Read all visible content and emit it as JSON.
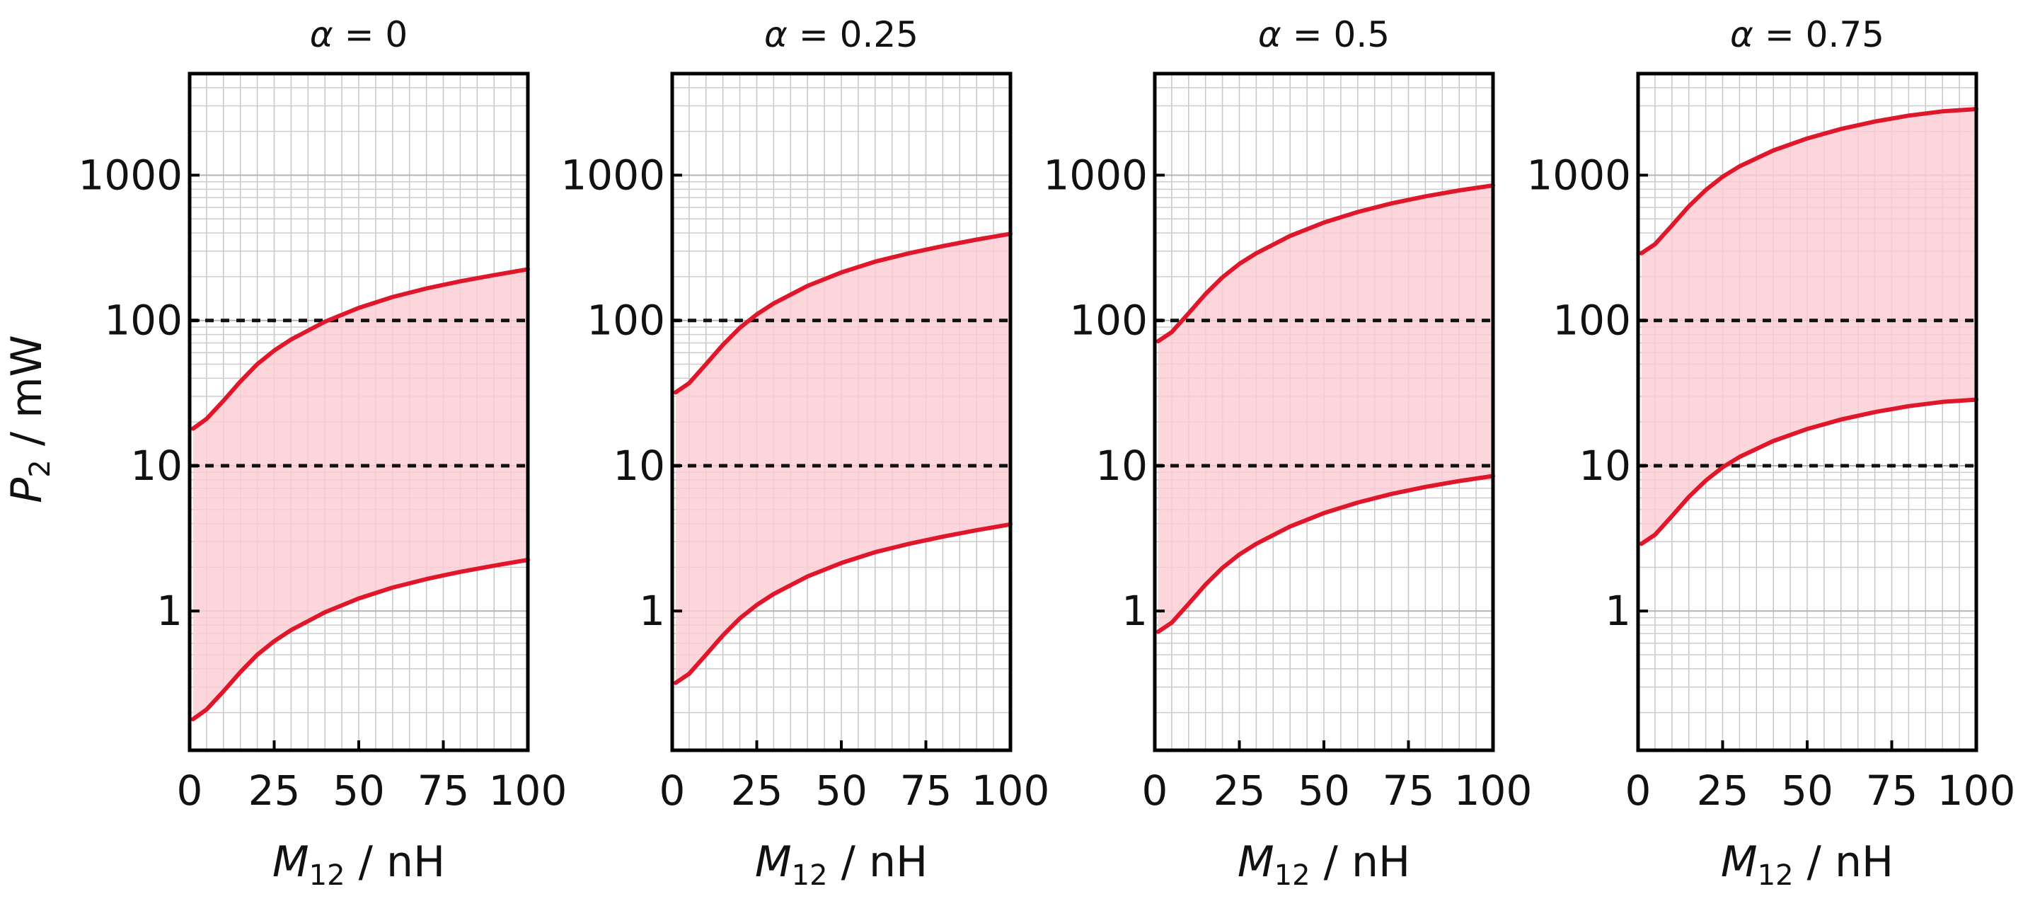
{
  "figure_ylabel": {
    "var": "P",
    "sub": "2",
    "unit": " / mW"
  },
  "chart_data": [
    {
      "type": "area",
      "title": {
        "var": "α",
        "rest": " = 0"
      },
      "xlabel": {
        "var": "M",
        "sub": "12",
        "unit": " / nH"
      },
      "xlim": [
        0,
        100
      ],
      "ylim": [
        0.11,
        5000
      ],
      "yscale": "log",
      "xticks": [
        0,
        25,
        50,
        75,
        100
      ],
      "yticks": [
        1,
        10,
        100,
        1000
      ],
      "grid": true,
      "reference_lines_y": [
        10,
        100
      ],
      "series": [
        {
          "name": "upper",
          "x": [
            1,
            5,
            10,
            15,
            20,
            25,
            30,
            40,
            50,
            60,
            70,
            80,
            90,
            100
          ],
          "y": [
            18,
            21,
            28,
            38,
            50,
            62,
            74,
            98,
            122,
            145,
            166,
            186,
            205,
            225
          ]
        },
        {
          "name": "lower",
          "x": [
            1,
            5,
            10,
            15,
            20,
            25,
            30,
            40,
            50,
            60,
            70,
            80,
            90,
            100
          ],
          "y": [
            0.18,
            0.21,
            0.28,
            0.38,
            0.5,
            0.62,
            0.74,
            0.98,
            1.22,
            1.45,
            1.66,
            1.86,
            2.05,
            2.25
          ]
        }
      ]
    },
    {
      "type": "area",
      "title": {
        "var": "α",
        "rest": " = 0.25"
      },
      "xlabel": {
        "var": "M",
        "sub": "12",
        "unit": " / nH"
      },
      "xlim": [
        0,
        100
      ],
      "ylim": [
        0.11,
        5000
      ],
      "yscale": "log",
      "xticks": [
        0,
        25,
        50,
        75,
        100
      ],
      "yticks": [
        1,
        10,
        100,
        1000
      ],
      "grid": true,
      "reference_lines_y": [
        10,
        100
      ],
      "series": [
        {
          "name": "upper",
          "x": [
            1,
            5,
            10,
            15,
            20,
            25,
            30,
            40,
            50,
            60,
            70,
            80,
            90,
            100
          ],
          "y": [
            32,
            37,
            50,
            68,
            89,
            110,
            131,
            173,
            214,
            254,
            290,
            325,
            360,
            395
          ]
        },
        {
          "name": "lower",
          "x": [
            1,
            5,
            10,
            15,
            20,
            25,
            30,
            40,
            50,
            60,
            70,
            80,
            90,
            100
          ],
          "y": [
            0.32,
            0.37,
            0.5,
            0.68,
            0.89,
            1.1,
            1.31,
            1.73,
            2.14,
            2.54,
            2.9,
            3.25,
            3.6,
            3.95
          ]
        }
      ]
    },
    {
      "type": "area",
      "title": {
        "var": "α",
        "rest": " = 0.5"
      },
      "xlabel": {
        "var": "M",
        "sub": "12",
        "unit": " / nH"
      },
      "xlim": [
        0,
        100
      ],
      "ylim": [
        0.11,
        5000
      ],
      "yscale": "log",
      "xticks": [
        0,
        25,
        50,
        75,
        100
      ],
      "yticks": [
        1,
        10,
        100,
        1000
      ],
      "grid": true,
      "reference_lines_y": [
        10,
        100
      ],
      "series": [
        {
          "name": "upper",
          "x": [
            1,
            5,
            10,
            15,
            20,
            25,
            30,
            40,
            50,
            60,
            70,
            80,
            90,
            100
          ],
          "y": [
            72,
            83,
            112,
            152,
            198,
            245,
            290,
            382,
            472,
            558,
            640,
            715,
            785,
            850
          ]
        },
        {
          "name": "lower",
          "x": [
            1,
            5,
            10,
            15,
            20,
            25,
            30,
            40,
            50,
            60,
            70,
            80,
            90,
            100
          ],
          "y": [
            0.72,
            0.83,
            1.12,
            1.52,
            1.98,
            2.45,
            2.9,
            3.82,
            4.72,
            5.58,
            6.4,
            7.15,
            7.85,
            8.5
          ]
        }
      ]
    },
    {
      "type": "area",
      "title": {
        "var": "α",
        "rest": " = 0.75"
      },
      "xlabel": {
        "var": "M",
        "sub": "12",
        "unit": " / nH"
      },
      "xlim": [
        0,
        100
      ],
      "ylim": [
        0.11,
        5000
      ],
      "yscale": "log",
      "xticks": [
        0,
        25,
        50,
        75,
        100
      ],
      "yticks": [
        1,
        10,
        100,
        1000
      ],
      "grid": true,
      "reference_lines_y": [
        10,
        100
      ],
      "series": [
        {
          "name": "upper",
          "x": [
            1,
            5,
            10,
            15,
            20,
            25,
            30,
            40,
            50,
            60,
            70,
            80,
            90,
            100
          ],
          "y": [
            290,
            335,
            450,
            610,
            790,
            975,
            1150,
            1480,
            1790,
            2080,
            2340,
            2570,
            2750,
            2850
          ]
        },
        {
          "name": "lower",
          "x": [
            1,
            5,
            10,
            15,
            20,
            25,
            30,
            40,
            50,
            60,
            70,
            80,
            90,
            100
          ],
          "y": [
            2.9,
            3.35,
            4.5,
            6.1,
            7.9,
            9.75,
            11.5,
            14.8,
            17.9,
            20.8,
            23.4,
            25.7,
            27.5,
            28.5
          ]
        }
      ]
    }
  ]
}
